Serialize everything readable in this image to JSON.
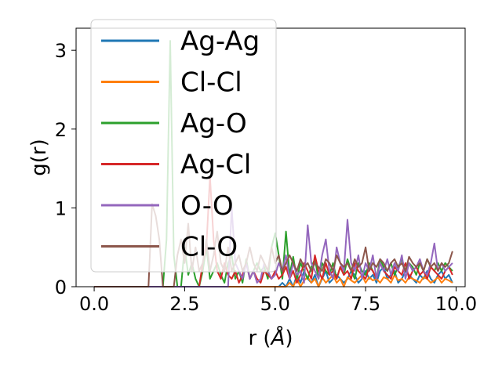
{
  "chart_data": {
    "type": "line",
    "xlabel": "r (",
    "xlabel_unit": "Å",
    "xlabel_close": ")",
    "ylabel": "g(r)",
    "xlim": [
      -0.5,
      10.25
    ],
    "ylim": [
      0,
      3.28
    ],
    "xticks": [
      0.0,
      2.5,
      5.0,
      7.5,
      10.0
    ],
    "xtick_labels": [
      "0.0",
      "2.5",
      "5.0",
      "7.5",
      "10.0"
    ],
    "yticks": [
      0,
      1,
      2,
      3
    ],
    "ytick_labels": [
      "0",
      "1",
      "2",
      "3"
    ],
    "grid": false,
    "legend_position": "top-left",
    "r": [
      0.0,
      0.1,
      0.2,
      0.3,
      0.4,
      0.5,
      0.6,
      0.7,
      0.8,
      0.9,
      1.0,
      1.1,
      1.2,
      1.3,
      1.4,
      1.5,
      1.6,
      1.7,
      1.8,
      1.9,
      2.0,
      2.1,
      2.2,
      2.3,
      2.4,
      2.5,
      2.6,
      2.7,
      2.8,
      2.9,
      3.0,
      3.1,
      3.2,
      3.3,
      3.4,
      3.5,
      3.6,
      3.7,
      3.8,
      3.9,
      4.0,
      4.1,
      4.2,
      4.3,
      4.4,
      4.5,
      4.6,
      4.7,
      4.8,
      4.9,
      5.0,
      5.1,
      5.2,
      5.3,
      5.4,
      5.5,
      5.6,
      5.7,
      5.8,
      5.9,
      6.0,
      6.1,
      6.2,
      6.3,
      6.4,
      6.5,
      6.6,
      6.7,
      6.8,
      6.9,
      7.0,
      7.1,
      7.2,
      7.3,
      7.4,
      7.5,
      7.6,
      7.7,
      7.8,
      7.9,
      8.0,
      8.1,
      8.2,
      8.3,
      8.4,
      8.5,
      8.6,
      8.7,
      8.8,
      8.9,
      9.0,
      9.1,
      9.2,
      9.3,
      9.4,
      9.5,
      9.6,
      9.7,
      9.8,
      9.9
    ],
    "series": [
      {
        "name": "Ag-Ag",
        "color": "#1f77b4",
        "values": [
          0,
          0,
          0,
          0,
          0,
          0,
          0,
          0,
          0,
          0,
          0,
          0,
          0,
          0,
          0,
          0,
          0,
          0,
          0,
          0,
          0,
          0,
          0,
          0,
          0,
          0,
          0,
          0,
          0,
          0,
          0,
          0,
          0,
          0,
          0,
          0,
          0,
          0,
          0,
          0,
          0,
          0,
          0,
          0,
          0,
          0,
          0,
          0,
          0,
          0,
          0,
          0,
          0.05,
          0,
          0.1,
          0,
          0.15,
          0.05,
          0.2,
          0.1,
          0.05,
          0.15,
          0,
          0.1,
          0.2,
          0.05,
          0.1,
          0.15,
          0.1,
          0.05,
          0.1,
          0.2,
          0.15,
          0.05,
          0.1,
          0.2,
          0.1,
          0.15,
          0.05,
          0.2,
          0.25,
          0.1,
          0.15,
          0.2,
          0.05,
          0.1,
          0.2,
          0.15,
          0.1,
          0.05,
          0.15,
          0.1,
          0.2,
          0.1,
          0.05,
          0.15,
          0.2,
          0.1,
          0.15,
          0.05
        ]
      },
      {
        "name": "Cl-Cl",
        "color": "#ff7f0e",
        "values": [
          0,
          0,
          0,
          0,
          0,
          0,
          0,
          0,
          0,
          0,
          0,
          0,
          0,
          0,
          0,
          0,
          0,
          0,
          0,
          0,
          0,
          0,
          0,
          0,
          0,
          0,
          0,
          0,
          0,
          0,
          0,
          0,
          0,
          0,
          0,
          0,
          0,
          0,
          0,
          0,
          0,
          0,
          0,
          0,
          0,
          0,
          0,
          0,
          0,
          0,
          0,
          0,
          0,
          0,
          0.05,
          0,
          0.1,
          0,
          0.08,
          0.12,
          0.05,
          0.1,
          0,
          0.12,
          0.05,
          0.1,
          0.15,
          0.05,
          0.1,
          0,
          0.12,
          0.08,
          0.05,
          0.1,
          0.15,
          0.05,
          0.12,
          0.08,
          0.1,
          0.05,
          0.12,
          0.1,
          0.05,
          0.15,
          0.08,
          0.1,
          0.05,
          0.12,
          0.1,
          0.08,
          0.05,
          0.12,
          0.1,
          0.05,
          0.08,
          0.12,
          0.05,
          0.1,
          0.08,
          0.05
        ]
      },
      {
        "name": "Ag-O",
        "color": "#2ca02c",
        "values": [
          0,
          0,
          0,
          0,
          0,
          0,
          0,
          0,
          0,
          0,
          0,
          0,
          0,
          0,
          0,
          0,
          0,
          0,
          0,
          0,
          0.6,
          3.12,
          0.4,
          0,
          0,
          0.5,
          0.15,
          0.3,
          0.1,
          0,
          0.2,
          0.5,
          0.1,
          0.2,
          0.3,
          0.15,
          0.05,
          0.3,
          0.4,
          0.1,
          0.2,
          0.05,
          0.35,
          0.1,
          0.2,
          0.3,
          0.2,
          0.25,
          0.1,
          0.5,
          0.68,
          0.4,
          0.1,
          0.7,
          0.15,
          0.38,
          0.1,
          0.3,
          0.2,
          0.1,
          0.25,
          0.35,
          0.1,
          0.3,
          0.2,
          0.15,
          0.3,
          0.1,
          0.25,
          0.15,
          0.35,
          0.2,
          0.1,
          0.3,
          0.2,
          0.15,
          0.3,
          0.2,
          0.1,
          0.35,
          0.25,
          0.2,
          0.3,
          0.15,
          0.25,
          0.35,
          0.2,
          0.3,
          0.25,
          0.15,
          0.3,
          0.2,
          0.35,
          0.25,
          0.2,
          0.3,
          0.2,
          0.3,
          0.25,
          0.2
        ]
      },
      {
        "name": "Ag-Cl",
        "color": "#d62728",
        "values": [
          0,
          0,
          0,
          0,
          0,
          0,
          0,
          0,
          0,
          0,
          0,
          0,
          0,
          0,
          0,
          0,
          0,
          0,
          0,
          0,
          0,
          0,
          0,
          0,
          0,
          0,
          0,
          0,
          0,
          0,
          0.3,
          0.5,
          1.4,
          0.6,
          0.2,
          0.1,
          0.3,
          0.15,
          0.1,
          0.2,
          0.05,
          0.15,
          0.3,
          0.1,
          0.2,
          0.1,
          0.05,
          0.2,
          0.15,
          0.1,
          0.2,
          0.1,
          0.15,
          0.25,
          0.1,
          0.2,
          0.05,
          0.15,
          0.3,
          0.2,
          0.1,
          0.4,
          0.2,
          0.1,
          0.3,
          0.15,
          0.2,
          0.1,
          0.25,
          0.15,
          0.2,
          0.1,
          0.3,
          0.2,
          0.15,
          0.1,
          0.25,
          0.2,
          0.1,
          0.3,
          0.2,
          0.15,
          0.1,
          0.25,
          0.2,
          0.15,
          0.3,
          0.1,
          0.2,
          0.25,
          0.15,
          0.2,
          0.1,
          0.25,
          0.2,
          0.15,
          0.1,
          0.2,
          0.25,
          0.15
        ]
      },
      {
        "name": "O-O",
        "color": "#9467bd",
        "values": [
          0,
          0,
          0,
          0,
          0,
          0,
          0,
          0,
          0,
          0,
          0,
          0,
          0,
          0,
          0,
          0,
          0,
          0,
          0,
          0,
          0,
          0,
          0,
          0,
          0,
          0,
          0,
          0,
          0,
          0,
          0,
          0,
          0,
          0,
          0,
          0,
          0,
          0,
          1.0,
          0.3,
          0.2,
          0.1,
          0.3,
          0.1,
          0.2,
          0.05,
          0.1,
          0.3,
          0.2,
          0.1,
          0.15,
          0.3,
          0.2,
          0.4,
          0.1,
          0.3,
          0.15,
          0.2,
          0.05,
          0.78,
          0.3,
          0.2,
          0.1,
          0.4,
          0.6,
          0.2,
          0.1,
          0.5,
          0.3,
          0.2,
          0.85,
          0.3,
          0.2,
          0.4,
          0.1,
          0.3,
          0.2,
          0.4,
          0.1,
          0.3,
          0.2,
          0.35,
          0.15,
          0.3,
          0.2,
          0.4,
          0.1,
          0.3,
          0.2,
          0.25,
          0.35,
          0.2,
          0.15,
          0.3,
          0.55,
          0.2,
          0.3,
          0.2,
          0.25,
          0.3
        ]
      },
      {
        "name": "Cl-O",
        "color": "#8c564b",
        "values": [
          0,
          0,
          0,
          0,
          0,
          0,
          0,
          0,
          0,
          0,
          0,
          0,
          0,
          0,
          0,
          0,
          1.05,
          0.9,
          0.6,
          0,
          0,
          0,
          0,
          0.4,
          0.6,
          0.3,
          0.8,
          0.2,
          0.5,
          0.2,
          0.3,
          0.6,
          0.2,
          0.4,
          0.7,
          0.3,
          0.2,
          0.5,
          0.2,
          0.3,
          0.4,
          0.2,
          0.3,
          0.5,
          0.3,
          0.2,
          0.4,
          0.3,
          0.2,
          0.5,
          0.3,
          0.4,
          0.2,
          0.3,
          0.4,
          0.3,
          0.2,
          0.35,
          0.25,
          0.3,
          0.2,
          0.3,
          0.25,
          0.2,
          0.35,
          0.3,
          0.2,
          0.4,
          0.3,
          0.25,
          0.3,
          0.2,
          0.35,
          0.25,
          0.3,
          0.5,
          0.2,
          0.3,
          0.25,
          0.35,
          0.3,
          0.2,
          0.3,
          0.35,
          0.25,
          0.3,
          0.2,
          0.38,
          0.3,
          0.25,
          0.3,
          0.2,
          0.35,
          0.25,
          0.3,
          0.2,
          0.3,
          0.25,
          0.3,
          0.45
        ]
      }
    ]
  }
}
